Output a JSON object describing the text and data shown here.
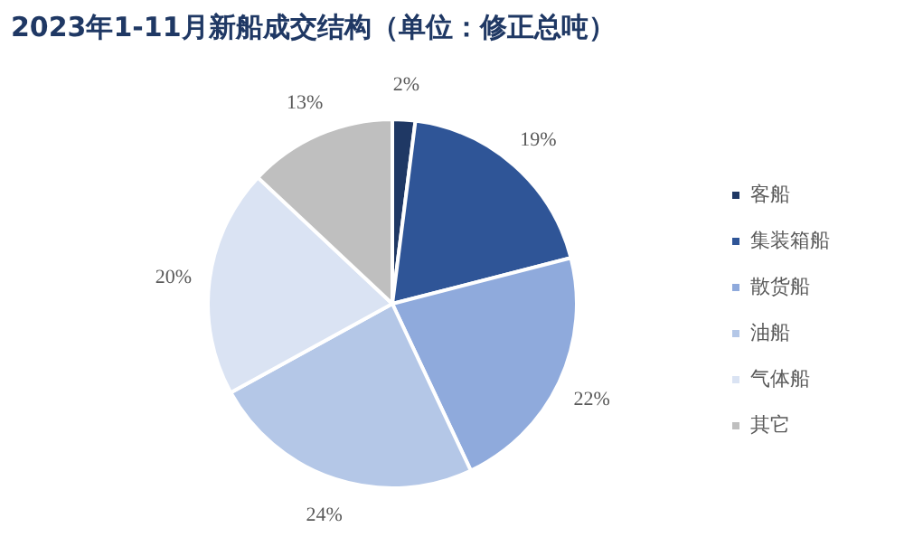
{
  "chart_data": {
    "type": "pie",
    "title": "2023年1-11月新船成交结构（单位：修正总吨）",
    "categories": [
      "客船",
      "集装箱船",
      "散货船",
      "油船",
      "气体船",
      "其它"
    ],
    "values": [
      2,
      19,
      22,
      24,
      20,
      13
    ],
    "value_labels": [
      "2%",
      "19%",
      "22%",
      "24%",
      "20%",
      "13%"
    ],
    "colors": [
      "#1f3864",
      "#2f5597",
      "#8faadc",
      "#b4c7e7",
      "#dae3f3",
      "#bfbfbf"
    ],
    "legend": "right"
  }
}
